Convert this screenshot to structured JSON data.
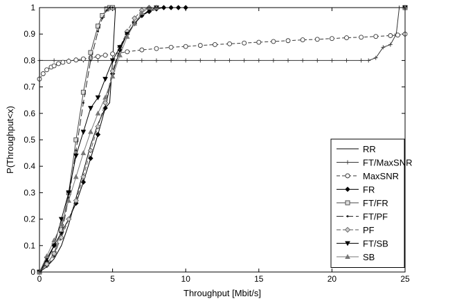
{
  "chart_data": {
    "type": "line",
    "title": "",
    "xlabel": "Throughput [Mbit/s]",
    "ylabel": "P(Throughput<x)",
    "xlim": [
      0,
      25
    ],
    "ylim": [
      0,
      1
    ],
    "x_ticks": [
      "0",
      "5",
      "10",
      "15",
      "20",
      "25"
    ],
    "y_ticks": [
      "0",
      "0.1",
      "0.2",
      "0.3",
      "0.4",
      "0.5",
      "0.6",
      "0.7",
      "0.8",
      "0.9",
      "1"
    ],
    "grid": false,
    "legend_position": "bottom-right",
    "series": [
      {
        "name": "RR",
        "dash": "",
        "marker": "none",
        "color": "#000000",
        "x": [
          0,
          0.5,
          1,
          1.5,
          2,
          2.5,
          3,
          3.5,
          4,
          4.5,
          4.8,
          5,
          5.2,
          25
        ],
        "y": [
          0,
          0.02,
          0.05,
          0.1,
          0.18,
          0.28,
          0.38,
          0.48,
          0.56,
          0.62,
          0.64,
          0.8,
          1.0,
          1.0
        ]
      },
      {
        "name": "FT/MaxSNR",
        "dash": "",
        "marker": "plus",
        "color": "#333333",
        "x": [
          0,
          0.01,
          1,
          2,
          3,
          4,
          5,
          6,
          7,
          8,
          9,
          10,
          11,
          12,
          13,
          14,
          15,
          16,
          17,
          18,
          19,
          20,
          21,
          22,
          22.5,
          23,
          23.5,
          24,
          24.4,
          24.6,
          25
        ],
        "y": [
          0,
          0.8,
          0.8,
          0.8,
          0.8,
          0.8,
          0.8,
          0.8,
          0.8,
          0.8,
          0.8,
          0.8,
          0.8,
          0.8,
          0.8,
          0.8,
          0.8,
          0.8,
          0.8,
          0.8,
          0.8,
          0.8,
          0.8,
          0.8,
          0.8,
          0.81,
          0.85,
          0.86,
          0.9,
          1.0,
          1.0
        ]
      },
      {
        "name": "MaxSNR",
        "dash": "5,3",
        "marker": "circle",
        "color": "#333333",
        "x": [
          0,
          0.25,
          0.5,
          0.8,
          1,
          1.3,
          1.6,
          2,
          2.5,
          3,
          3.5,
          4,
          4.5,
          5,
          6,
          7,
          8,
          9,
          10,
          11,
          12,
          13,
          14,
          15,
          16,
          17,
          18,
          19,
          20,
          21,
          22,
          23,
          24,
          24.5,
          25
        ],
        "y": [
          0.73,
          0.75,
          0.765,
          0.775,
          0.78,
          0.788,
          0.793,
          0.797,
          0.802,
          0.806,
          0.81,
          0.815,
          0.82,
          0.825,
          0.833,
          0.84,
          0.845,
          0.85,
          0.853,
          0.857,
          0.86,
          0.863,
          0.866,
          0.869,
          0.872,
          0.875,
          0.878,
          0.88,
          0.883,
          0.886,
          0.888,
          0.891,
          0.894,
          0.896,
          0.9
        ]
      },
      {
        "name": "FR",
        "dash": "",
        "marker": "diamond",
        "color": "#000000",
        "x": [
          0,
          0.5,
          1,
          1.5,
          2,
          2.5,
          3,
          3.5,
          4,
          4.5,
          5,
          5.5,
          6,
          6.5,
          7,
          7.5,
          8,
          8.5,
          9,
          9.5,
          10,
          25
        ],
        "y": [
          0,
          0.04,
          0.1,
          0.15,
          0.2,
          0.26,
          0.34,
          0.43,
          0.52,
          0.62,
          0.75,
          0.84,
          0.9,
          0.94,
          0.97,
          0.985,
          0.995,
          1.0,
          1.0,
          1.0,
          1.0,
          1.0
        ]
      },
      {
        "name": "FT/FR",
        "dash": "",
        "marker": "square",
        "color": "#444444",
        "x": [
          0,
          0.5,
          1,
          1.5,
          2,
          2.5,
          3,
          3.5,
          4,
          4.3,
          4.6,
          4.8,
          5,
          25
        ],
        "y": [
          0,
          0.03,
          0.07,
          0.16,
          0.3,
          0.5,
          0.68,
          0.83,
          0.93,
          0.97,
          0.995,
          1.0,
          1.0,
          1.0
        ]
      },
      {
        "name": "FT/PF",
        "dash": "10,4",
        "marker": "dot",
        "color": "#222222",
        "x": [
          0,
          0.5,
          1,
          1.5,
          2,
          2.5,
          3,
          3.5,
          4,
          4.3,
          4.6,
          4.8,
          5,
          25
        ],
        "y": [
          0,
          0.02,
          0.06,
          0.14,
          0.28,
          0.46,
          0.64,
          0.8,
          0.91,
          0.96,
          0.99,
          1.0,
          1.0,
          1.0
        ]
      },
      {
        "name": "PF",
        "dash": "6,3",
        "marker": "diamond-open",
        "color": "#555555",
        "x": [
          0,
          0.5,
          1,
          1.5,
          2,
          2.5,
          3,
          3.5,
          4,
          4.5,
          5,
          5.5,
          6,
          6.5,
          7,
          7.5,
          8,
          25
        ],
        "y": [
          0,
          0.03,
          0.07,
          0.13,
          0.2,
          0.27,
          0.36,
          0.46,
          0.55,
          0.64,
          0.76,
          0.85,
          0.91,
          0.96,
          0.99,
          1.0,
          1.0,
          1.0
        ]
      },
      {
        "name": "FT/SB",
        "dash": "",
        "marker": "triangle-down",
        "color": "#000000",
        "x": [
          0,
          0.5,
          1,
          1.5,
          2,
          2.5,
          3,
          3.5,
          4,
          4.5,
          5,
          5.5,
          6,
          6.5,
          7,
          7.5,
          8,
          25
        ],
        "y": [
          0,
          0.05,
          0.1,
          0.2,
          0.3,
          0.44,
          0.53,
          0.62,
          0.66,
          0.73,
          0.8,
          0.85,
          0.9,
          0.94,
          0.97,
          0.99,
          1.0,
          1.0
        ]
      },
      {
        "name": "SB",
        "dash": "",
        "marker": "triangle-up",
        "color": "#777777",
        "x": [
          0,
          0.5,
          1,
          1.5,
          2,
          2.5,
          3,
          3.5,
          4,
          4.5,
          5,
          5.5,
          6,
          6.5,
          7,
          7.5,
          8,
          25
        ],
        "y": [
          0,
          0.06,
          0.12,
          0.18,
          0.27,
          0.36,
          0.45,
          0.53,
          0.6,
          0.66,
          0.74,
          0.82,
          0.89,
          0.94,
          0.98,
          1.0,
          1.0,
          1.0
        ]
      }
    ]
  }
}
